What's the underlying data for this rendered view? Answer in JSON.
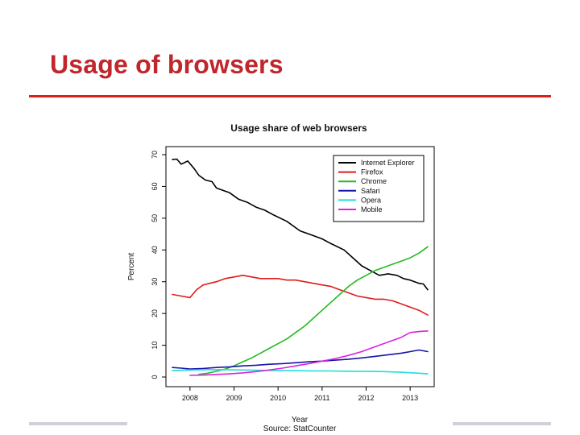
{
  "slide": {
    "title": "Usage of browsers"
  },
  "colors": {
    "title": "#c0262b",
    "rule": "#d9201f",
    "footer_bar": "#d0d0d8"
  },
  "chart_data": {
    "type": "line",
    "title": "Usage share of web browsers",
    "xlabel": "Year",
    "ylabel": "Percent",
    "caption": "Source: StatCounter",
    "xlim": [
      2007.6,
      2013.4
    ],
    "ylim": [
      0,
      70
    ],
    "x_ticks": [
      2008,
      2009,
      2010,
      2011,
      2012,
      2013
    ],
    "x_tick_labels": [
      "2008",
      "2009",
      "2010",
      "2011",
      "2012",
      "2013"
    ],
    "y_ticks": [
      0,
      10,
      20,
      30,
      40,
      50,
      60,
      70
    ],
    "y_tick_labels": [
      "0",
      "10",
      "20",
      "30",
      "40",
      "50",
      "60",
      "70"
    ],
    "grid": false,
    "legend_position": "top-right",
    "series": [
      {
        "name": "Internet Explorer",
        "color": "#000000",
        "x": [
          2007.6,
          2007.7,
          2007.8,
          2007.95,
          2008.1,
          2008.2,
          2008.35,
          2008.5,
          2008.6,
          2008.7,
          2008.9,
          2009.1,
          2009.3,
          2009.5,
          2009.7,
          2009.9,
          2010.2,
          2010.5,
          2010.8,
          2011.0,
          2011.2,
          2011.5,
          2011.7,
          2011.9,
          2012.1,
          2012.3,
          2012.5,
          2012.7,
          2012.85,
          2013.0,
          2013.2,
          2013.3,
          2013.4
        ],
        "y": [
          68.5,
          68.6,
          67.0,
          68.0,
          65.5,
          63.5,
          62.0,
          61.5,
          59.5,
          59.0,
          58.0,
          56.0,
          55.0,
          53.5,
          52.5,
          51.0,
          49.0,
          46.0,
          44.5,
          43.5,
          42.0,
          40.0,
          37.5,
          35.0,
          33.5,
          32.0,
          32.5,
          32.0,
          31.0,
          30.5,
          29.5,
          29.3,
          27.5
        ]
      },
      {
        "name": "Firefox",
        "color": "#e01b1b",
        "x": [
          2007.6,
          2007.8,
          2008.0,
          2008.15,
          2008.3,
          2008.45,
          2008.6,
          2008.8,
          2009.0,
          2009.2,
          2009.4,
          2009.6,
          2009.8,
          2010.0,
          2010.2,
          2010.4,
          2010.6,
          2010.8,
          2011.0,
          2011.2,
          2011.4,
          2011.6,
          2011.8,
          2012.0,
          2012.2,
          2012.4,
          2012.6,
          2012.8,
          2013.0,
          2013.2,
          2013.4
        ],
        "y": [
          26.0,
          25.5,
          25.0,
          27.5,
          29.0,
          29.5,
          30.0,
          31.0,
          31.5,
          32.0,
          31.5,
          31.0,
          31.0,
          31.0,
          30.5,
          30.5,
          30.0,
          29.5,
          29.0,
          28.5,
          27.5,
          26.5,
          25.5,
          25.0,
          24.5,
          24.5,
          24.0,
          23.0,
          22.0,
          21.0,
          19.5
        ]
      },
      {
        "name": "Chrome",
        "color": "#22bb22",
        "x": [
          2008.2,
          2008.4,
          2008.6,
          2008.8,
          2009.0,
          2009.2,
          2009.4,
          2009.6,
          2009.8,
          2010.0,
          2010.2,
          2010.4,
          2010.6,
          2010.8,
          2011.0,
          2011.2,
          2011.4,
          2011.6,
          2011.8,
          2012.0,
          2012.2,
          2012.4,
          2012.6,
          2012.8,
          2013.0,
          2013.2,
          2013.4
        ],
        "y": [
          0.8,
          1.2,
          1.8,
          2.5,
          3.5,
          4.8,
          6.0,
          7.5,
          9.0,
          10.5,
          12.0,
          14.0,
          16.0,
          18.5,
          21.0,
          23.5,
          26.0,
          28.5,
          30.5,
          32.0,
          33.5,
          34.5,
          35.5,
          36.5,
          37.5,
          39.0,
          41.0
        ]
      },
      {
        "name": "Safari",
        "color": "#1515aa",
        "x": [
          2007.6,
          2007.8,
          2008.0,
          2008.3,
          2008.6,
          2008.9,
          2009.2,
          2009.5,
          2009.8,
          2010.1,
          2010.4,
          2010.7,
          2011.0,
          2011.3,
          2011.6,
          2011.9,
          2012.2,
          2012.5,
          2012.8,
          2013.0,
          2013.2,
          2013.4
        ],
        "y": [
          3.0,
          2.8,
          2.5,
          2.7,
          3.0,
          3.2,
          3.5,
          3.7,
          4.0,
          4.2,
          4.5,
          4.8,
          5.0,
          5.3,
          5.6,
          6.0,
          6.5,
          7.0,
          7.5,
          8.0,
          8.5,
          8.0
        ]
      },
      {
        "name": "Opera",
        "color": "#22dddd",
        "x": [
          2007.6,
          2008.0,
          2008.4,
          2008.8,
          2009.2,
          2009.6,
          2010.0,
          2010.4,
          2010.8,
          2011.2,
          2011.6,
          2012.0,
          2012.4,
          2012.8,
          2013.2,
          2013.4
        ],
        "y": [
          2.0,
          2.2,
          2.3,
          2.3,
          2.2,
          2.1,
          2.0,
          2.0,
          1.9,
          1.9,
          1.8,
          1.8,
          1.7,
          1.5,
          1.2,
          1.0
        ]
      },
      {
        "name": "Mobile",
        "color": "#dd22dd",
        "x": [
          2008.0,
          2008.3,
          2008.6,
          2008.9,
          2009.2,
          2009.5,
          2009.8,
          2010.1,
          2010.4,
          2010.7,
          2011.0,
          2011.3,
          2011.6,
          2011.9,
          2012.2,
          2012.5,
          2012.8,
          2013.0,
          2013.2,
          2013.4
        ],
        "y": [
          0.5,
          0.6,
          0.8,
          1.0,
          1.3,
          1.7,
          2.2,
          2.8,
          3.5,
          4.2,
          5.0,
          5.8,
          6.8,
          8.0,
          9.5,
          11.0,
          12.5,
          14.0,
          14.3,
          14.5
        ]
      }
    ]
  }
}
